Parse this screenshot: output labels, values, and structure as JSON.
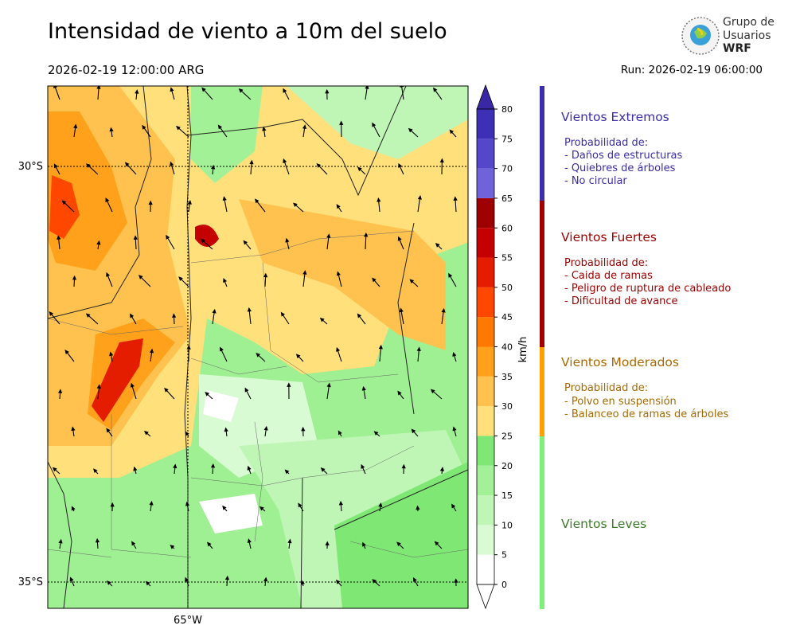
{
  "header": {
    "title": "Intensidad de viento a 10m del suelo",
    "date": "2026-02-19 12:00:00 ARG",
    "run": "Run: 2026-02-19 06:00:00",
    "logo": [
      "Grupo de",
      "Usuarios",
      "WRF"
    ]
  },
  "map": {
    "lat_labels": [
      "30°S",
      "35°S"
    ],
    "lon_labels": [
      "65°W"
    ]
  },
  "colorbar": {
    "unit": "km/h",
    "ticks": [
      0,
      5,
      10,
      15,
      20,
      25,
      30,
      35,
      40,
      45,
      50,
      55,
      60,
      65,
      70,
      75,
      80
    ],
    "colors": [
      "#ffffff",
      "#d9fbd3",
      "#bff6b6",
      "#a3f196",
      "#7fe874",
      "#ffe07a",
      "#ffc24e",
      "#ffa11a",
      "#ff7800",
      "#ff4700",
      "#e41c00",
      "#c40000",
      "#9e0000",
      "#7063da",
      "#5447c9",
      "#3d2fb6"
    ],
    "under_color": "#ffffff",
    "over_color": "#3a27a6"
  },
  "categories": [
    {
      "name": "Vientos Extremos",
      "color": "#3b2fae",
      "text_color": "#3a2ea8",
      "heading": "Probabilidad de:",
      "items": [
        "- Daños de estructuras",
        "- Quiebres de árboles",
        "- No circular"
      ]
    },
    {
      "name": "Vientos Fuertes",
      "color": "#a00000",
      "text_color": "#9b0000",
      "heading": "Probabilidad de:",
      "items": [
        "- Caida de ramas",
        "- Peligro de ruptura de cableado",
        "- Dificultad de avance"
      ]
    },
    {
      "name": "Vientos Moderados",
      "color": "#ffa000",
      "text_color": "#a86a00",
      "heading": "Probabilidad de:",
      "items": [
        "- Polvo en suspensión",
        "- Balanceo de ramas de árboles"
      ]
    },
    {
      "name": "Vientos Leves",
      "color": "#7ff07a",
      "text_color": "#3d7a2a"
    }
  ]
}
